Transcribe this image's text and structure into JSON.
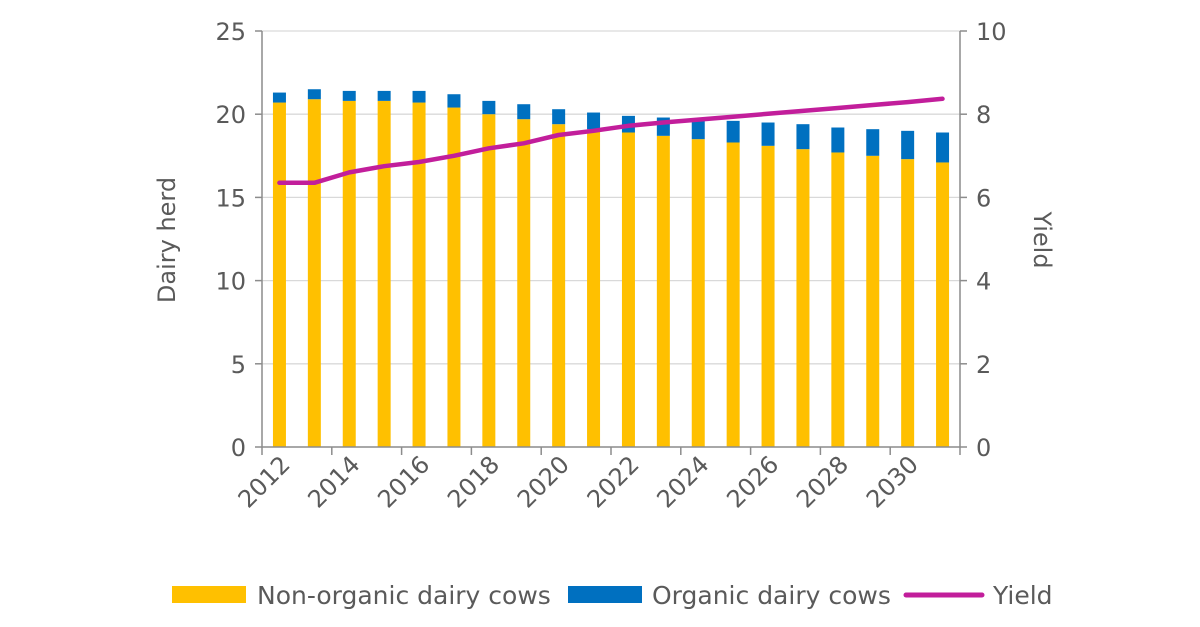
{
  "chart_data": {
    "type": "bar",
    "stacked": true,
    "x": [
      2012,
      2013,
      2014,
      2015,
      2016,
      2017,
      2018,
      2019,
      2020,
      2021,
      2022,
      2023,
      2024,
      2025,
      2026,
      2027,
      2028,
      2029,
      2030,
      2031
    ],
    "x_tick_labels": [
      "2012",
      "2014",
      "2016",
      "2018",
      "2020",
      "2022",
      "2024",
      "2026",
      "2028",
      "2030"
    ],
    "series": [
      {
        "name": "Non-organic dairy cows",
        "axis": "left",
        "color": "#FFC000",
        "values": [
          20.7,
          20.9,
          20.8,
          20.8,
          20.7,
          20.4,
          20.0,
          19.7,
          19.4,
          19.1,
          18.9,
          18.7,
          18.5,
          18.3,
          18.1,
          17.9,
          17.7,
          17.5,
          17.3,
          17.1
        ]
      },
      {
        "name": "Organic dairy cows",
        "axis": "left",
        "color": "#0070C0",
        "values": [
          0.6,
          0.6,
          0.6,
          0.6,
          0.7,
          0.8,
          0.8,
          0.9,
          0.9,
          1.0,
          1.0,
          1.1,
          1.2,
          1.3,
          1.4,
          1.5,
          1.5,
          1.6,
          1.7,
          1.8
        ]
      },
      {
        "name": "Yield",
        "axis": "right",
        "type": "line",
        "color": "#C21E9B",
        "values": [
          6.35,
          6.35,
          6.6,
          6.75,
          6.85,
          7.0,
          7.18,
          7.3,
          7.5,
          7.6,
          7.72,
          7.8,
          7.87,
          7.94,
          8.01,
          8.08,
          8.15,
          8.22,
          8.29,
          8.37
        ]
      }
    ],
    "y_left": {
      "label": "Dairy herd",
      "min": 0,
      "max": 25,
      "ticks": [
        0,
        5,
        10,
        15,
        20,
        25
      ]
    },
    "y_right": {
      "label": "Yield",
      "min": 0,
      "max": 10,
      "ticks": [
        0,
        2,
        4,
        6,
        8,
        10
      ]
    },
    "legend": {
      "placement": "bottom",
      "items": [
        "Non-organic dairy cows",
        "Organic dairy cows",
        "Yield"
      ]
    },
    "grid": true,
    "axis_color": "#8c8c8c",
    "grid_color": "#d9d9d9"
  }
}
